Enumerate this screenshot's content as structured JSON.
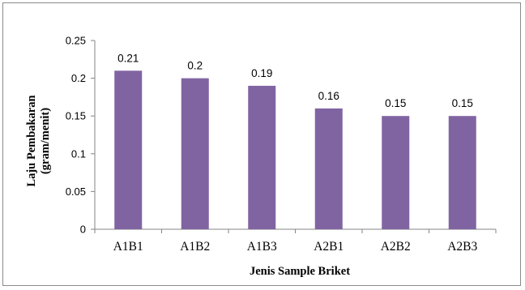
{
  "chart_data": {
    "type": "bar",
    "categories": [
      "A1B1",
      "A1B2",
      "A1B3",
      "A2B1",
      "A2B2",
      "A2B3"
    ],
    "values": [
      0.21,
      0.2,
      0.19,
      0.16,
      0.15,
      0.15
    ],
    "value_labels": [
      "0.21",
      "0.2",
      "0.19",
      "0.16",
      "0.15",
      "0.15"
    ],
    "title": "",
    "xlabel": "Jenis Sample Briket",
    "ylabel_line1": "Laju Pembakaran",
    "ylabel_line2": "(gram/menit)",
    "ylim": [
      0,
      0.25
    ],
    "yticks": [
      0,
      0.05,
      0.1,
      0.15,
      0.2,
      0.25
    ],
    "ytick_labels": [
      "0",
      "0.05",
      "0.1",
      "0.15",
      "0.2",
      "0.25"
    ],
    "grid": false,
    "legend": "none",
    "bar_color": "#8064a2"
  }
}
